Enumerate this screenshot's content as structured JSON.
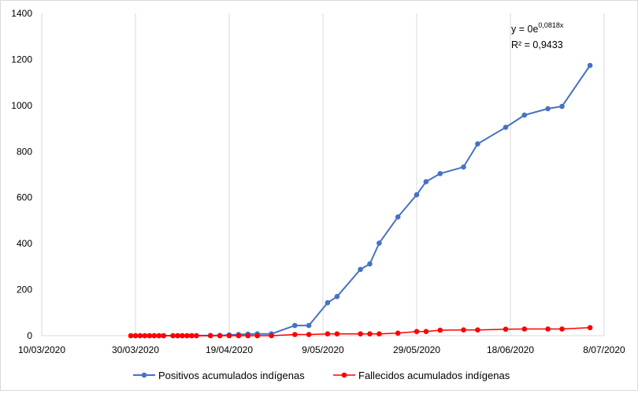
{
  "chart_data": {
    "type": "line",
    "title": "",
    "xlabel": "",
    "ylabel": "",
    "ylim": [
      0,
      1400
    ],
    "yticks": [
      0,
      200,
      400,
      600,
      800,
      1000,
      1200,
      1400
    ],
    "ytick_labels": [
      "0",
      "200",
      "400",
      "600",
      "800",
      "1000",
      "1200",
      "1400"
    ],
    "xlim": [
      "2020-03-10",
      "2020-07-08"
    ],
    "xtick_labels": [
      "10/03/2020",
      "30/03/2020",
      "19/04/2020",
      "9/05/2020",
      "29/05/2020",
      "18/06/2020",
      "8/07/2020"
    ],
    "xtick_dates": [
      "2020-03-10",
      "2020-03-30",
      "2020-04-19",
      "2020-05-09",
      "2020-05-29",
      "2020-06-18",
      "2020-07-08"
    ],
    "grid": {
      "vertical": true,
      "horizontal": false
    },
    "legend_position": "bottom",
    "annotation": {
      "line1_base": "y = 0e",
      "line1_exp": "0,0818x",
      "line2": "R² = 0,9433"
    },
    "series": [
      {
        "name": "Positivos acumulados indígenas",
        "color": "#4472c4",
        "x": [
          "2020-03-29",
          "2020-03-30",
          "2020-03-31",
          "2020-04-01",
          "2020-04-02",
          "2020-04-03",
          "2020-04-04",
          "2020-04-05",
          "2020-04-07",
          "2020-04-08",
          "2020-04-09",
          "2020-04-10",
          "2020-04-11",
          "2020-04-12",
          "2020-04-15",
          "2020-04-17",
          "2020-04-19",
          "2020-04-21",
          "2020-04-23",
          "2020-04-25",
          "2020-04-28",
          "2020-05-03",
          "2020-05-06",
          "2020-05-10",
          "2020-05-12",
          "2020-05-17",
          "2020-05-19",
          "2020-05-21",
          "2020-05-25",
          "2020-05-29",
          "2020-05-31",
          "2020-06-03",
          "2020-06-08",
          "2020-06-11",
          "2020-06-17",
          "2020-06-21",
          "2020-06-26",
          "2020-06-29",
          "2020-07-05"
        ],
        "values": [
          0,
          0,
          0,
          0,
          0,
          0,
          0,
          0,
          0,
          0,
          0,
          0,
          0,
          0,
          1,
          1,
          3,
          5,
          7,
          8,
          8,
          44,
          44,
          143,
          170,
          288,
          312,
          402,
          516,
          612,
          669,
          704,
          733,
          833,
          905,
          958,
          986,
          996,
          1174
        ]
      },
      {
        "name": "Fallecidos acumulados indígenas",
        "color": "#ff0000",
        "x": [
          "2020-03-29",
          "2020-03-30",
          "2020-03-31",
          "2020-04-01",
          "2020-04-02",
          "2020-04-03",
          "2020-04-04",
          "2020-04-05",
          "2020-04-07",
          "2020-04-08",
          "2020-04-09",
          "2020-04-10",
          "2020-04-11",
          "2020-04-12",
          "2020-04-15",
          "2020-04-17",
          "2020-04-19",
          "2020-04-21",
          "2020-04-23",
          "2020-04-25",
          "2020-04-28",
          "2020-05-03",
          "2020-05-06",
          "2020-05-10",
          "2020-05-12",
          "2020-05-17",
          "2020-05-19",
          "2020-05-21",
          "2020-05-25",
          "2020-05-29",
          "2020-05-31",
          "2020-06-03",
          "2020-06-08",
          "2020-06-11",
          "2020-06-17",
          "2020-06-21",
          "2020-06-26",
          "2020-06-29",
          "2020-07-05"
        ],
        "values": [
          0,
          0,
          0,
          0,
          0,
          0,
          0,
          0,
          0,
          0,
          0,
          0,
          0,
          0,
          0,
          0,
          0,
          0,
          0,
          0,
          0,
          5,
          5,
          8,
          8,
          8,
          8,
          8,
          11,
          18,
          18,
          24,
          25,
          25,
          28,
          29,
          29,
          29,
          35
        ]
      }
    ]
  }
}
